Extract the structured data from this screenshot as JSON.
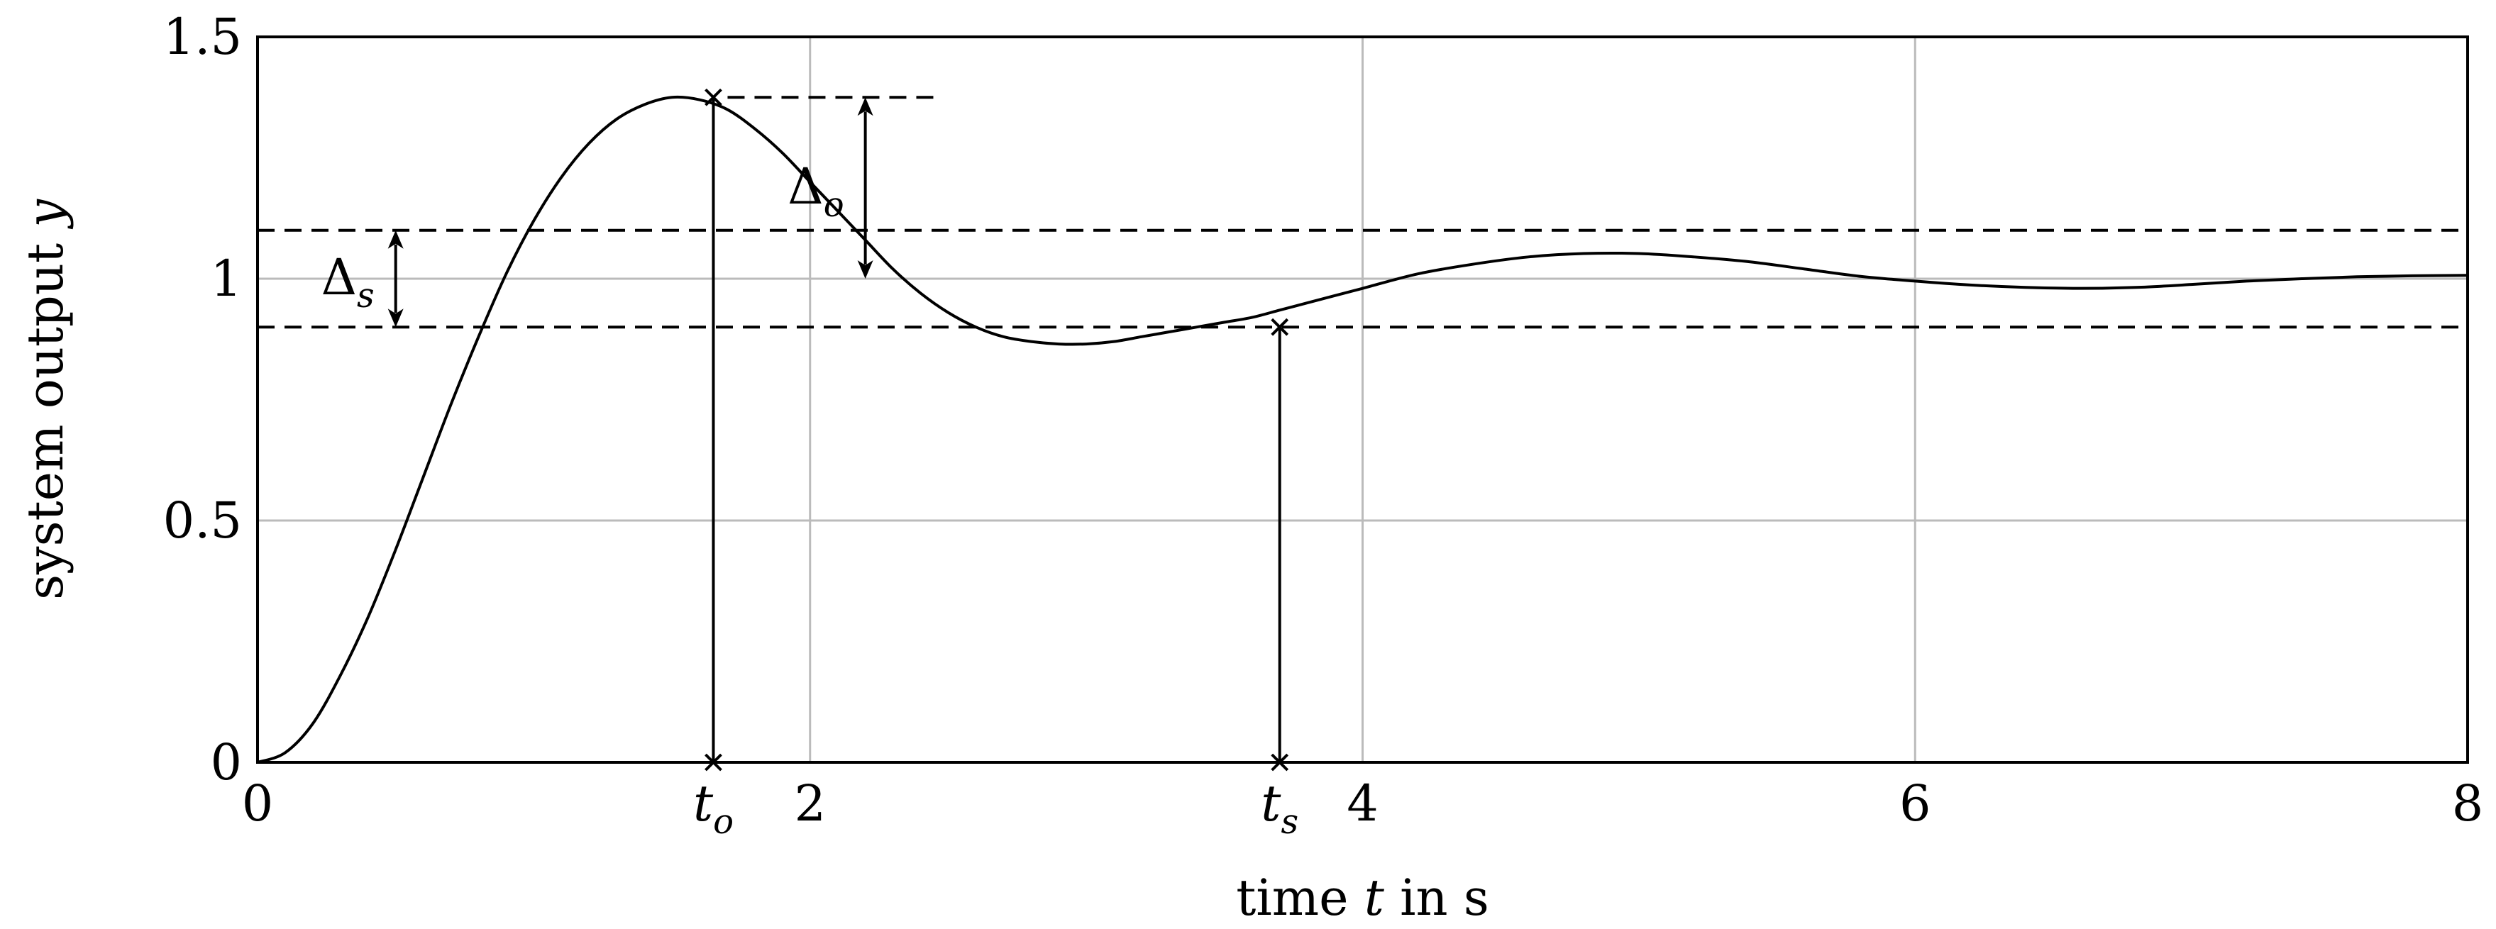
{
  "chart_data": {
    "type": "line",
    "title": "",
    "xlabel": {
      "prefix": "time ",
      "var": "t",
      "suffix": " in s"
    },
    "ylabel": {
      "prefix": "system output ",
      "var": "y"
    },
    "xlim": [
      0,
      8
    ],
    "ylim": [
      0,
      1.5
    ],
    "grid": true,
    "x_ticks": [
      {
        "value": 0,
        "label": "0"
      },
      {
        "value": 2,
        "label": "2"
      },
      {
        "value": 4,
        "label": "4"
      },
      {
        "value": 6,
        "label": "6"
      },
      {
        "value": 8,
        "label": "8"
      }
    ],
    "y_ticks": [
      {
        "value": 0,
        "label": "0"
      },
      {
        "value": 0.5,
        "label": "0.5"
      },
      {
        "value": 1,
        "label": "1"
      },
      {
        "value": 1.5,
        "label": "1.5"
      }
    ],
    "series": [
      {
        "x": [
          0,
          0.1,
          0.2,
          0.3,
          0.4,
          0.5,
          0.6,
          0.7,
          0.8,
          0.9,
          1.0,
          1.1,
          1.2,
          1.3,
          1.4,
          1.5,
          1.6,
          1.7,
          1.8,
          1.9,
          2.0,
          2.1,
          2.2,
          2.3,
          2.4,
          2.5,
          2.6,
          2.7,
          2.8,
          2.9,
          3.0,
          3.1,
          3.2,
          3.3,
          3.4,
          3.5,
          3.6,
          3.7,
          3.8,
          3.9,
          4.0,
          4.2,
          4.4,
          4.6,
          4.8,
          5.0,
          5.2,
          5.4,
          5.6,
          5.8,
          6.0,
          6.2,
          6.4,
          6.6,
          6.8,
          7.0,
          7.2,
          7.4,
          7.6,
          7.8,
          8.0
        ],
        "y": [
          0,
          0.02,
          0.08,
          0.18,
          0.3,
          0.44,
          0.59,
          0.74,
          0.88,
          1.01,
          1.12,
          1.21,
          1.28,
          1.33,
          1.36,
          1.375,
          1.37,
          1.35,
          1.31,
          1.26,
          1.2,
          1.14,
          1.08,
          1.02,
          0.97,
          0.93,
          0.9,
          0.88,
          0.87,
          0.865,
          0.865,
          0.87,
          0.88,
          0.89,
          0.9,
          0.91,
          0.92,
          0.935,
          0.95,
          0.965,
          0.98,
          1.01,
          1.03,
          1.045,
          1.052,
          1.052,
          1.045,
          1.035,
          1.02,
          1.005,
          0.995,
          0.987,
          0.982,
          0.98,
          0.982,
          0.988,
          0.995,
          1.0,
          1.004,
          1.006,
          1.007
        ]
      }
    ],
    "reference_lines": [
      1.1,
      0.9
    ],
    "markers": [
      {
        "x": 1.65,
        "y": 1.375,
        "label_main": "t",
        "label_sub": "o"
      },
      {
        "x": 3.7,
        "y": 0.9,
        "label_main": "t",
        "label_sub": "s"
      }
    ],
    "annotations": [
      {
        "label_main": "Δ",
        "label_sub": "o",
        "x": 2.2,
        "y_from": 1.375,
        "y_to": 1.0
      },
      {
        "label_main": "Δ",
        "label_sub": "s",
        "x": 0.5,
        "y_from": 1.1,
        "y_to": 0.9
      }
    ],
    "colors": {
      "curve": "#000000",
      "grid": "#bbbbbb",
      "axes": "#000000"
    }
  }
}
